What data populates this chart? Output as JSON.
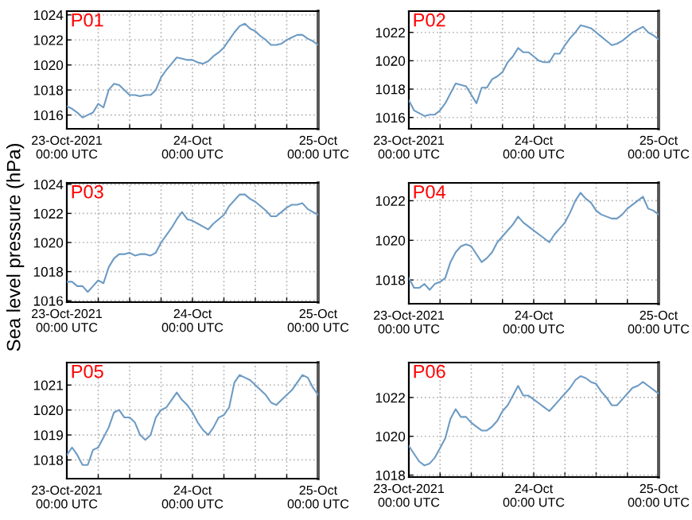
{
  "chart_data": [
    {
      "type": "line",
      "title": "P01",
      "x": [
        "2021-10-23T00:00",
        "2021-10-23T01:00",
        "2021-10-23T02:00",
        "2021-10-23T03:00",
        "2021-10-23T04:00",
        "2021-10-23T05:00",
        "2021-10-23T06:00",
        "2021-10-23T07:00",
        "2021-10-23T08:00",
        "2021-10-23T09:00",
        "2021-10-23T10:00",
        "2021-10-23T11:00",
        "2021-10-23T12:00",
        "2021-10-23T13:00",
        "2021-10-23T14:00",
        "2021-10-23T15:00",
        "2021-10-23T16:00",
        "2021-10-23T17:00",
        "2021-10-23T18:00",
        "2021-10-23T19:00",
        "2021-10-23T20:00",
        "2021-10-23T21:00",
        "2021-10-23T22:00",
        "2021-10-23T23:00",
        "2021-10-24T00:00",
        "2021-10-24T01:00",
        "2021-10-24T02:00",
        "2021-10-24T03:00",
        "2021-10-24T04:00",
        "2021-10-24T05:00",
        "2021-10-24T06:00",
        "2021-10-24T07:00",
        "2021-10-24T08:00",
        "2021-10-24T09:00",
        "2021-10-24T10:00",
        "2021-10-24T11:00",
        "2021-10-24T12:00",
        "2021-10-24T13:00",
        "2021-10-24T14:00",
        "2021-10-24T15:00",
        "2021-10-24T16:00",
        "2021-10-24T17:00",
        "2021-10-24T18:00",
        "2021-10-24T19:00",
        "2021-10-24T20:00",
        "2021-10-24T21:00",
        "2021-10-24T22:00",
        "2021-10-24T23:00",
        "2021-10-25T00:00"
      ],
      "series": [
        {
          "color": "#6d9bc3",
          "values": [
            1016.7,
            1016.5,
            1016.2,
            1015.8,
            1016.0,
            1016.2,
            1016.9,
            1016.6,
            1018.0,
            1018.5,
            1018.4,
            1018.0,
            1017.6,
            1017.6,
            1017.5,
            1017.6,
            1017.6,
            1018.0,
            1019.0,
            1019.6,
            1020.1,
            1020.6,
            1020.5,
            1020.4,
            1020.4,
            1020.2,
            1020.1,
            1020.3,
            1020.7,
            1021.0,
            1021.4,
            1022.0,
            1022.6,
            1023.1,
            1023.3,
            1022.9,
            1022.7,
            1022.3,
            1022.0,
            1021.6,
            1021.6,
            1021.7,
            1022.0,
            1022.2,
            1022.4,
            1022.4,
            1022.1,
            1021.9,
            1021.6
          ]
        }
      ],
      "xlim": [
        "2021-10-23T00:00",
        "2021-10-25T00:00"
      ],
      "ylim": [
        1014.9,
        1024.3
      ],
      "yticks": [
        1016,
        1018,
        1020,
        1022,
        1024
      ],
      "xticks": [
        {
          "value": "2021-10-23T00:00",
          "label": "23-Oct-2021\n00:00 UTC"
        },
        {
          "value": "2021-10-23T06:00",
          "label": null
        },
        {
          "value": "2021-10-23T12:00",
          "label": null
        },
        {
          "value": "2021-10-23T18:00",
          "label": null
        },
        {
          "value": "2021-10-24T00:00",
          "label": "24-Oct\n00:00 UTC"
        },
        {
          "value": "2021-10-24T06:00",
          "label": null
        },
        {
          "value": "2021-10-24T12:00",
          "label": null
        },
        {
          "value": "2021-10-24T18:00",
          "label": null
        },
        {
          "value": "2021-10-25T00:00",
          "label": "25-Oct\n00:00 UTC"
        }
      ],
      "grid": true
    },
    {
      "type": "line",
      "title": "P02",
      "x": [
        "2021-10-23T00:00",
        "2021-10-23T01:00",
        "2021-10-23T02:00",
        "2021-10-23T03:00",
        "2021-10-23T04:00",
        "2021-10-23T05:00",
        "2021-10-23T06:00",
        "2021-10-23T07:00",
        "2021-10-23T08:00",
        "2021-10-23T09:00",
        "2021-10-23T10:00",
        "2021-10-23T11:00",
        "2021-10-23T12:00",
        "2021-10-23T13:00",
        "2021-10-23T14:00",
        "2021-10-23T15:00",
        "2021-10-23T16:00",
        "2021-10-23T17:00",
        "2021-10-23T18:00",
        "2021-10-23T19:00",
        "2021-10-23T20:00",
        "2021-10-23T21:00",
        "2021-10-23T22:00",
        "2021-10-23T23:00",
        "2021-10-24T00:00",
        "2021-10-24T01:00",
        "2021-10-24T02:00",
        "2021-10-24T03:00",
        "2021-10-24T04:00",
        "2021-10-24T05:00",
        "2021-10-24T06:00",
        "2021-10-24T07:00",
        "2021-10-24T08:00",
        "2021-10-24T09:00",
        "2021-10-24T10:00",
        "2021-10-24T11:00",
        "2021-10-24T12:00",
        "2021-10-24T13:00",
        "2021-10-24T14:00",
        "2021-10-24T15:00",
        "2021-10-24T16:00",
        "2021-10-24T17:00",
        "2021-10-24T18:00",
        "2021-10-24T19:00",
        "2021-10-24T20:00",
        "2021-10-24T21:00",
        "2021-10-24T22:00",
        "2021-10-24T23:00",
        "2021-10-25T00:00"
      ],
      "series": [
        {
          "color": "#6d9bc3",
          "values": [
            1017.2,
            1016.5,
            1016.3,
            1016.1,
            1016.2,
            1016.2,
            1016.5,
            1017.0,
            1017.7,
            1018.4,
            1018.3,
            1018.2,
            1017.6,
            1017.0,
            1018.1,
            1018.1,
            1018.7,
            1018.9,
            1019.2,
            1019.9,
            1020.3,
            1020.9,
            1020.6,
            1020.6,
            1020.3,
            1020.0,
            1019.9,
            1019.9,
            1020.5,
            1020.5,
            1021.1,
            1021.6,
            1022.0,
            1022.5,
            1022.4,
            1022.3,
            1022.0,
            1021.7,
            1021.4,
            1021.1,
            1021.2,
            1021.4,
            1021.7,
            1022.0,
            1022.2,
            1022.4,
            1022.0,
            1021.8,
            1021.5
          ]
        }
      ],
      "xlim": [
        "2021-10-23T00:00",
        "2021-10-25T00:00"
      ],
      "ylim": [
        1015.2,
        1023.5
      ],
      "yticks": [
        1016,
        1018,
        1020,
        1022
      ],
      "xticks": [
        {
          "value": "2021-10-23T00:00",
          "label": "23-Oct-2021\n00:00 UTC"
        },
        {
          "value": "2021-10-23T06:00",
          "label": null
        },
        {
          "value": "2021-10-23T12:00",
          "label": null
        },
        {
          "value": "2021-10-23T18:00",
          "label": null
        },
        {
          "value": "2021-10-24T00:00",
          "label": "24-Oct\n00:00 UTC"
        },
        {
          "value": "2021-10-24T06:00",
          "label": null
        },
        {
          "value": "2021-10-24T12:00",
          "label": null
        },
        {
          "value": "2021-10-24T18:00",
          "label": null
        },
        {
          "value": "2021-10-25T00:00",
          "label": "25-Oct\n00:00 UTC"
        }
      ],
      "grid": true
    },
    {
      "type": "line",
      "title": "P03",
      "ylabel": "Sea level pressure (hPa)",
      "x": [
        "2021-10-23T00:00",
        "2021-10-23T01:00",
        "2021-10-23T02:00",
        "2021-10-23T03:00",
        "2021-10-23T04:00",
        "2021-10-23T05:00",
        "2021-10-23T06:00",
        "2021-10-23T07:00",
        "2021-10-23T08:00",
        "2021-10-23T09:00",
        "2021-10-23T10:00",
        "2021-10-23T11:00",
        "2021-10-23T12:00",
        "2021-10-23T13:00",
        "2021-10-23T14:00",
        "2021-10-23T15:00",
        "2021-10-23T16:00",
        "2021-10-23T17:00",
        "2021-10-23T18:00",
        "2021-10-23T19:00",
        "2021-10-23T20:00",
        "2021-10-23T21:00",
        "2021-10-23T22:00",
        "2021-10-23T23:00",
        "2021-10-24T00:00",
        "2021-10-24T01:00",
        "2021-10-24T02:00",
        "2021-10-24T03:00",
        "2021-10-24T04:00",
        "2021-10-24T05:00",
        "2021-10-24T06:00",
        "2021-10-24T07:00",
        "2021-10-24T08:00",
        "2021-10-24T09:00",
        "2021-10-24T10:00",
        "2021-10-24T11:00",
        "2021-10-24T12:00",
        "2021-10-24T13:00",
        "2021-10-24T14:00",
        "2021-10-24T15:00",
        "2021-10-24T16:00",
        "2021-10-24T17:00",
        "2021-10-24T18:00",
        "2021-10-24T19:00",
        "2021-10-24T20:00",
        "2021-10-24T21:00",
        "2021-10-24T22:00",
        "2021-10-24T23:00",
        "2021-10-25T00:00"
      ],
      "series": [
        {
          "color": "#6d9bc3",
          "values": [
            1017.3,
            1017.3,
            1017.0,
            1017.0,
            1016.6,
            1017.0,
            1017.4,
            1017.2,
            1018.3,
            1018.9,
            1019.2,
            1019.2,
            1019.3,
            1019.1,
            1019.2,
            1019.2,
            1019.1,
            1019.3,
            1020.0,
            1020.5,
            1021.0,
            1021.6,
            1022.1,
            1021.6,
            1021.5,
            1021.3,
            1021.1,
            1020.9,
            1021.3,
            1021.6,
            1021.9,
            1022.5,
            1022.9,
            1023.3,
            1023.3,
            1023.0,
            1022.8,
            1022.5,
            1022.2,
            1021.8,
            1021.8,
            1022.1,
            1022.4,
            1022.6,
            1022.6,
            1022.7,
            1022.3,
            1022.1,
            1021.9
          ]
        }
      ],
      "xlim": [
        "2021-10-23T00:00",
        "2021-10-25T00:00"
      ],
      "ylim": [
        1015.9,
        1024.1
      ],
      "yticks": [
        1016,
        1018,
        1020,
        1022,
        1024
      ],
      "xticks": [
        {
          "value": "2021-10-23T00:00",
          "label": "23-Oct-2021\n00:00 UTC"
        },
        {
          "value": "2021-10-23T06:00",
          "label": null
        },
        {
          "value": "2021-10-23T12:00",
          "label": null
        },
        {
          "value": "2021-10-23T18:00",
          "label": null
        },
        {
          "value": "2021-10-24T00:00",
          "label": "24-Oct\n00:00 UTC"
        },
        {
          "value": "2021-10-24T06:00",
          "label": null
        },
        {
          "value": "2021-10-24T12:00",
          "label": null
        },
        {
          "value": "2021-10-24T18:00",
          "label": null
        },
        {
          "value": "2021-10-25T00:00",
          "label": "25-Oct\n00:00 UTC"
        }
      ],
      "grid": true
    },
    {
      "type": "line",
      "title": "P04",
      "x": [
        "2021-10-23T00:00",
        "2021-10-23T01:00",
        "2021-10-23T02:00",
        "2021-10-23T03:00",
        "2021-10-23T04:00",
        "2021-10-23T05:00",
        "2021-10-23T06:00",
        "2021-10-23T07:00",
        "2021-10-23T08:00",
        "2021-10-23T09:00",
        "2021-10-23T10:00",
        "2021-10-23T11:00",
        "2021-10-23T12:00",
        "2021-10-23T13:00",
        "2021-10-23T14:00",
        "2021-10-23T15:00",
        "2021-10-23T16:00",
        "2021-10-23T17:00",
        "2021-10-23T18:00",
        "2021-10-23T19:00",
        "2021-10-23T20:00",
        "2021-10-23T21:00",
        "2021-10-23T22:00",
        "2021-10-23T23:00",
        "2021-10-24T00:00",
        "2021-10-24T01:00",
        "2021-10-24T02:00",
        "2021-10-24T03:00",
        "2021-10-24T04:00",
        "2021-10-24T05:00",
        "2021-10-24T06:00",
        "2021-10-24T07:00",
        "2021-10-24T08:00",
        "2021-10-24T09:00",
        "2021-10-24T10:00",
        "2021-10-24T11:00",
        "2021-10-24T12:00",
        "2021-10-24T13:00",
        "2021-10-24T14:00",
        "2021-10-24T15:00",
        "2021-10-24T16:00",
        "2021-10-24T17:00",
        "2021-10-24T18:00",
        "2021-10-24T19:00",
        "2021-10-24T20:00",
        "2021-10-24T21:00",
        "2021-10-24T22:00",
        "2021-10-24T23:00",
        "2021-10-25T00:00"
      ],
      "series": [
        {
          "color": "#6d9bc3",
          "values": [
            1018.1,
            1017.6,
            1017.6,
            1017.8,
            1017.5,
            1017.8,
            1017.9,
            1018.1,
            1018.9,
            1019.4,
            1019.7,
            1019.8,
            1019.7,
            1019.3,
            1018.9,
            1019.1,
            1019.4,
            1019.9,
            1020.2,
            1020.5,
            1020.8,
            1021.2,
            1020.9,
            1020.7,
            1020.5,
            1020.3,
            1020.1,
            1019.9,
            1020.3,
            1020.6,
            1020.9,
            1021.4,
            1022.0,
            1022.4,
            1022.1,
            1021.9,
            1021.5,
            1021.3,
            1021.2,
            1021.1,
            1021.1,
            1021.3,
            1021.6,
            1021.8,
            1022.0,
            1022.2,
            1021.6,
            1021.5,
            1021.3
          ]
        }
      ],
      "xlim": [
        "2021-10-23T00:00",
        "2021-10-25T00:00"
      ],
      "ylim": [
        1016.8,
        1022.9
      ],
      "yticks": [
        1018,
        1020,
        1022
      ],
      "xticks": [
        {
          "value": "2021-10-23T00:00",
          "label": "23-Oct-2021\n00:00 UTC"
        },
        {
          "value": "2021-10-23T06:00",
          "label": null
        },
        {
          "value": "2021-10-23T12:00",
          "label": null
        },
        {
          "value": "2021-10-23T18:00",
          "label": null
        },
        {
          "value": "2021-10-24T00:00",
          "label": "24-Oct\n00:00 UTC"
        },
        {
          "value": "2021-10-24T06:00",
          "label": null
        },
        {
          "value": "2021-10-24T12:00",
          "label": null
        },
        {
          "value": "2021-10-24T18:00",
          "label": null
        },
        {
          "value": "2021-10-25T00:00",
          "label": "25-Oct\n00:00 UTC"
        }
      ],
      "grid": true
    },
    {
      "type": "line",
      "title": "P05",
      "x": [
        "2021-10-23T00:00",
        "2021-10-23T01:00",
        "2021-10-23T02:00",
        "2021-10-23T03:00",
        "2021-10-23T04:00",
        "2021-10-23T05:00",
        "2021-10-23T06:00",
        "2021-10-23T07:00",
        "2021-10-23T08:00",
        "2021-10-23T09:00",
        "2021-10-23T10:00",
        "2021-10-23T11:00",
        "2021-10-23T12:00",
        "2021-10-23T13:00",
        "2021-10-23T14:00",
        "2021-10-23T15:00",
        "2021-10-23T16:00",
        "2021-10-23T17:00",
        "2021-10-23T18:00",
        "2021-10-23T19:00",
        "2021-10-23T20:00",
        "2021-10-23T21:00",
        "2021-10-23T22:00",
        "2021-10-23T23:00",
        "2021-10-24T00:00",
        "2021-10-24T01:00",
        "2021-10-24T02:00",
        "2021-10-24T03:00",
        "2021-10-24T04:00",
        "2021-10-24T05:00",
        "2021-10-24T06:00",
        "2021-10-24T07:00",
        "2021-10-24T08:00",
        "2021-10-24T09:00",
        "2021-10-24T10:00",
        "2021-10-24T11:00",
        "2021-10-24T12:00",
        "2021-10-24T13:00",
        "2021-10-24T14:00",
        "2021-10-24T15:00",
        "2021-10-24T16:00",
        "2021-10-24T17:00",
        "2021-10-24T18:00",
        "2021-10-24T19:00",
        "2021-10-24T20:00",
        "2021-10-24T21:00",
        "2021-10-24T22:00",
        "2021-10-24T23:00",
        "2021-10-25T00:00"
      ],
      "series": [
        {
          "color": "#6d9bc3",
          "values": [
            1018.2,
            1018.5,
            1018.2,
            1017.8,
            1017.8,
            1018.4,
            1018.5,
            1018.9,
            1019.3,
            1019.9,
            1020.0,
            1019.7,
            1019.7,
            1019.5,
            1019.0,
            1018.8,
            1019.0,
            1019.7,
            1020.0,
            1020.1,
            1020.4,
            1020.7,
            1020.4,
            1020.2,
            1019.9,
            1019.5,
            1019.2,
            1019.0,
            1019.3,
            1019.7,
            1019.8,
            1020.1,
            1021.1,
            1021.4,
            1021.3,
            1021.2,
            1021.0,
            1020.8,
            1020.6,
            1020.3,
            1020.2,
            1020.4,
            1020.6,
            1020.8,
            1021.1,
            1021.4,
            1021.3,
            1020.9,
            1020.6
          ]
        }
      ],
      "xlim": [
        "2021-10-23T00:00",
        "2021-10-25T00:00"
      ],
      "ylim": [
        1017.25,
        1021.9
      ],
      "yticks": [
        1018,
        1019,
        1020,
        1021
      ],
      "xticks": [
        {
          "value": "2021-10-23T00:00",
          "label": "23-Oct-2021\n00:00 UTC"
        },
        {
          "value": "2021-10-23T06:00",
          "label": null
        },
        {
          "value": "2021-10-23T12:00",
          "label": null
        },
        {
          "value": "2021-10-23T18:00",
          "label": null
        },
        {
          "value": "2021-10-24T00:00",
          "label": "24-Oct\n00:00 UTC"
        },
        {
          "value": "2021-10-24T06:00",
          "label": null
        },
        {
          "value": "2021-10-24T12:00",
          "label": null
        },
        {
          "value": "2021-10-24T18:00",
          "label": null
        },
        {
          "value": "2021-10-25T00:00",
          "label": "25-Oct\n00:00 UTC"
        }
      ],
      "grid": true
    },
    {
      "type": "line",
      "title": "P06",
      "x": [
        "2021-10-23T00:00",
        "2021-10-23T01:00",
        "2021-10-23T02:00",
        "2021-10-23T03:00",
        "2021-10-23T04:00",
        "2021-10-23T05:00",
        "2021-10-23T06:00",
        "2021-10-23T07:00",
        "2021-10-23T08:00",
        "2021-10-23T09:00",
        "2021-10-23T10:00",
        "2021-10-23T11:00",
        "2021-10-23T12:00",
        "2021-10-23T13:00",
        "2021-10-23T14:00",
        "2021-10-23T15:00",
        "2021-10-23T16:00",
        "2021-10-23T17:00",
        "2021-10-23T18:00",
        "2021-10-23T19:00",
        "2021-10-23T20:00",
        "2021-10-23T21:00",
        "2021-10-23T22:00",
        "2021-10-23T23:00",
        "2021-10-24T00:00",
        "2021-10-24T01:00",
        "2021-10-24T02:00",
        "2021-10-24T03:00",
        "2021-10-24T04:00",
        "2021-10-24T05:00",
        "2021-10-24T06:00",
        "2021-10-24T07:00",
        "2021-10-24T08:00",
        "2021-10-24T09:00",
        "2021-10-24T10:00",
        "2021-10-24T11:00",
        "2021-10-24T12:00",
        "2021-10-24T13:00",
        "2021-10-24T14:00",
        "2021-10-24T15:00",
        "2021-10-24T16:00",
        "2021-10-24T17:00",
        "2021-10-24T18:00",
        "2021-10-24T19:00",
        "2021-10-24T20:00",
        "2021-10-24T21:00",
        "2021-10-24T22:00",
        "2021-10-24T23:00",
        "2021-10-25T00:00"
      ],
      "series": [
        {
          "color": "#6d9bc3",
          "values": [
            1019.5,
            1019.1,
            1018.7,
            1018.5,
            1018.6,
            1018.9,
            1019.4,
            1019.9,
            1020.9,
            1021.4,
            1021.0,
            1021.0,
            1020.7,
            1020.5,
            1020.3,
            1020.3,
            1020.5,
            1020.8,
            1021.3,
            1021.6,
            1022.1,
            1022.6,
            1022.1,
            1022.1,
            1021.9,
            1021.7,
            1021.5,
            1021.3,
            1021.6,
            1021.9,
            1022.2,
            1022.5,
            1022.9,
            1023.1,
            1023.0,
            1022.8,
            1022.7,
            1022.3,
            1022.0,
            1021.6,
            1021.6,
            1021.9,
            1022.2,
            1022.5,
            1022.6,
            1022.8,
            1022.6,
            1022.4,
            1022.2
          ]
        }
      ],
      "xlim": [
        "2021-10-23T00:00",
        "2021-10-25T00:00"
      ],
      "ylim": [
        1017.9,
        1023.8
      ],
      "yticks": [
        1018,
        1020,
        1022
      ],
      "xticks": [
        {
          "value": "2021-10-23T00:00",
          "label": "23-Oct-2021\n00:00 UTC"
        },
        {
          "value": "2021-10-23T06:00",
          "label": null
        },
        {
          "value": "2021-10-23T12:00",
          "label": null
        },
        {
          "value": "2021-10-23T18:00",
          "label": null
        },
        {
          "value": "2021-10-24T00:00",
          "label": "24-Oct\n00:00 UTC"
        },
        {
          "value": "2021-10-24T06:00",
          "label": null
        },
        {
          "value": "2021-10-24T12:00",
          "label": null
        },
        {
          "value": "2021-10-24T18:00",
          "label": null
        },
        {
          "value": "2021-10-25T00:00",
          "label": "25-Oct\n00:00 UTC"
        }
      ],
      "grid": true
    }
  ]
}
